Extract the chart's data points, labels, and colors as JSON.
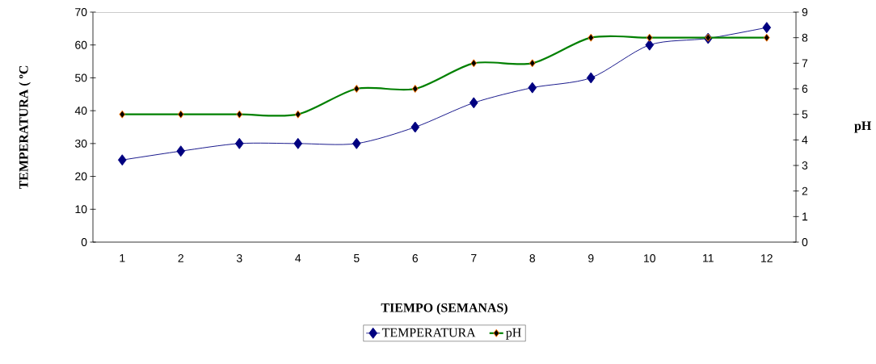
{
  "chart_data": {
    "type": "line",
    "xlabel": "TIEMPO (SEMANAS)",
    "ylabel": "TEMPERATURA ( ºC",
    "y2label": "pH",
    "categories": [
      "1",
      "2",
      "3",
      "4",
      "5",
      "6",
      "7",
      "8",
      "9",
      "10",
      "11",
      "12"
    ],
    "series": [
      {
        "name": "TEMPERATURA",
        "color": "#000080",
        "values": [
          25,
          27.7,
          30,
          30,
          30,
          35,
          42.4,
          47,
          50,
          60,
          62,
          65.3
        ]
      },
      {
        "name": "pH",
        "color": "#008000",
        "axis": "y2",
        "values": [
          5,
          5,
          5,
          5,
          6,
          6,
          7,
          7,
          8,
          8,
          8,
          8
        ]
      }
    ],
    "ylim": [
      0,
      70
    ],
    "yticks": [
      0,
      10,
      20,
      30,
      40,
      50,
      60,
      70
    ],
    "y2lim": [
      0,
      9
    ],
    "y2ticks": [
      0,
      1,
      2,
      3,
      4,
      5,
      6,
      7,
      8,
      9
    ],
    "marker": "diamond",
    "line_style": "solid",
    "legend": "bottom",
    "grid": false
  }
}
